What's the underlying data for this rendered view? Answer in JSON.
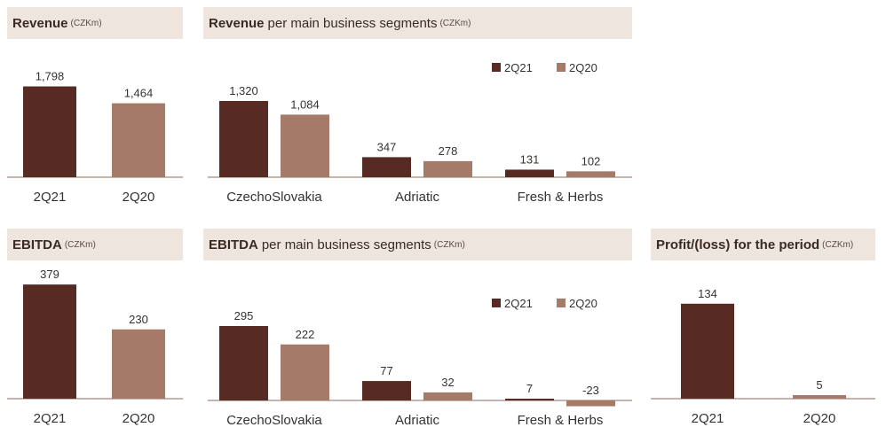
{
  "colors": {
    "series_2021": "#572a24",
    "series_2020": "#a67a68",
    "header_bg": "#eee6de",
    "axis": "#8b6b60"
  },
  "chart_data": [
    {
      "id": "revenue",
      "type": "bar",
      "title_bold": "Revenue",
      "title_rest": "",
      "unit": "(CZKm)",
      "categories": [
        "2Q21",
        "2Q20"
      ],
      "values": [
        1798,
        1464
      ],
      "value_labels": [
        "1,798",
        "1,464"
      ],
      "ylim": [
        0,
        2000
      ],
      "grid": false
    },
    {
      "id": "revenue_segments",
      "type": "bar",
      "title_bold": "Revenue",
      "title_rest": "per main business segments",
      "unit": "(CZKm)",
      "categories": [
        "CzechoSlovakia",
        "Adriatic",
        "Fresh & Herbs"
      ],
      "series": [
        {
          "name": "2Q21",
          "values": [
            1320,
            347,
            131
          ],
          "value_labels": [
            "1,320",
            "347",
            "131"
          ]
        },
        {
          "name": "2Q20",
          "values": [
            1084,
            278,
            102
          ],
          "value_labels": [
            "1,084",
            "278",
            "102"
          ]
        }
      ],
      "legend": "top-right",
      "ylim": [
        0,
        1500
      ],
      "grid": false
    },
    {
      "id": "ebitda",
      "type": "bar",
      "title_bold": "EBITDA",
      "title_rest": "",
      "unit": "(CZKm)",
      "categories": [
        "2Q21",
        "2Q20"
      ],
      "values": [
        379,
        230
      ],
      "value_labels": [
        "379",
        "230"
      ],
      "ylim": [
        0,
        400
      ],
      "grid": false
    },
    {
      "id": "ebitda_segments",
      "type": "bar",
      "title_bold": "EBITDA",
      "title_rest": "per main business segments",
      "unit": "(CZKm)",
      "categories": [
        "CzechoSlovakia",
        "Adriatic",
        "Fresh & Herbs"
      ],
      "series": [
        {
          "name": "2Q21",
          "values": [
            295,
            77,
            7
          ],
          "value_labels": [
            "295",
            "77",
            "7"
          ]
        },
        {
          "name": "2Q20",
          "values": [
            222,
            32,
            -23
          ],
          "value_labels": [
            "222",
            "32",
            "-23"
          ]
        }
      ],
      "legend": "top-right",
      "ylim": [
        -30,
        340
      ],
      "grid": false
    },
    {
      "id": "profit",
      "type": "bar",
      "title_bold": "Profit/(loss) for the period",
      "title_rest": "",
      "unit": "(CZKm)",
      "categories": [
        "2Q21",
        "2Q20"
      ],
      "values": [
        134,
        5
      ],
      "value_labels": [
        "134",
        "5"
      ],
      "ylim": [
        0,
        150
      ],
      "grid": false
    }
  ]
}
